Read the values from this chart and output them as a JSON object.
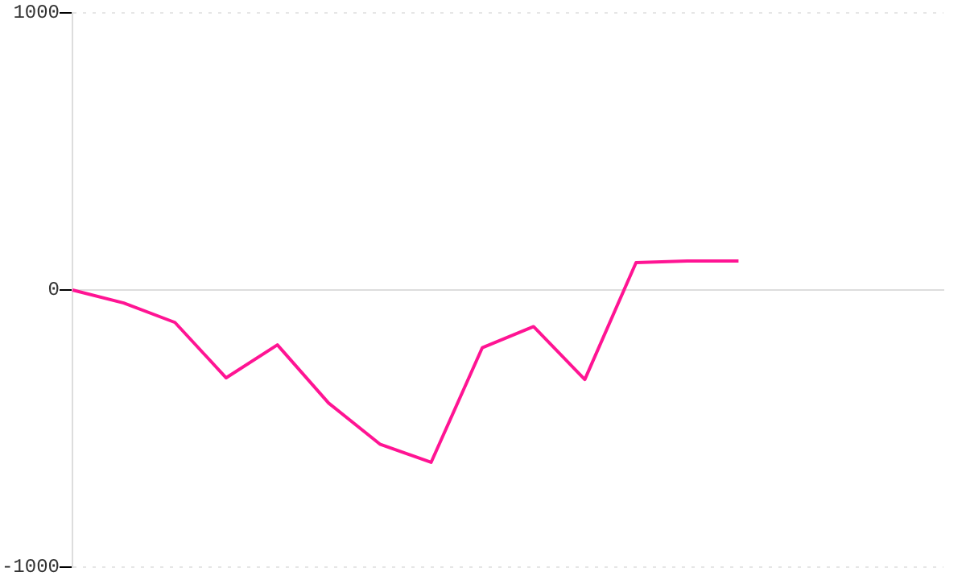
{
  "chart_data": {
    "type": "line",
    "categories": [
      null,
      null,
      null,
      null,
      null,
      null,
      null,
      null,
      null,
      null,
      null,
      null,
      null,
      null,
      null,
      null,
      null,
      null
    ],
    "series": [
      {
        "color": "#ff1493",
        "values": [
          0,
          -47,
          -117,
          -317,
          -198,
          -408,
          -556,
          -622,
          -208,
          -132,
          -323,
          99,
          105,
          105,
          null,
          null,
          null,
          null
        ]
      }
    ],
    "ylim": [
      -1000,
      1000
    ],
    "yticks": [
      -1000,
      0,
      1000
    ],
    "grid": "y",
    "tick_labels": "y",
    "legend": false,
    "marker": "none",
    "line_style": "solid"
  }
}
